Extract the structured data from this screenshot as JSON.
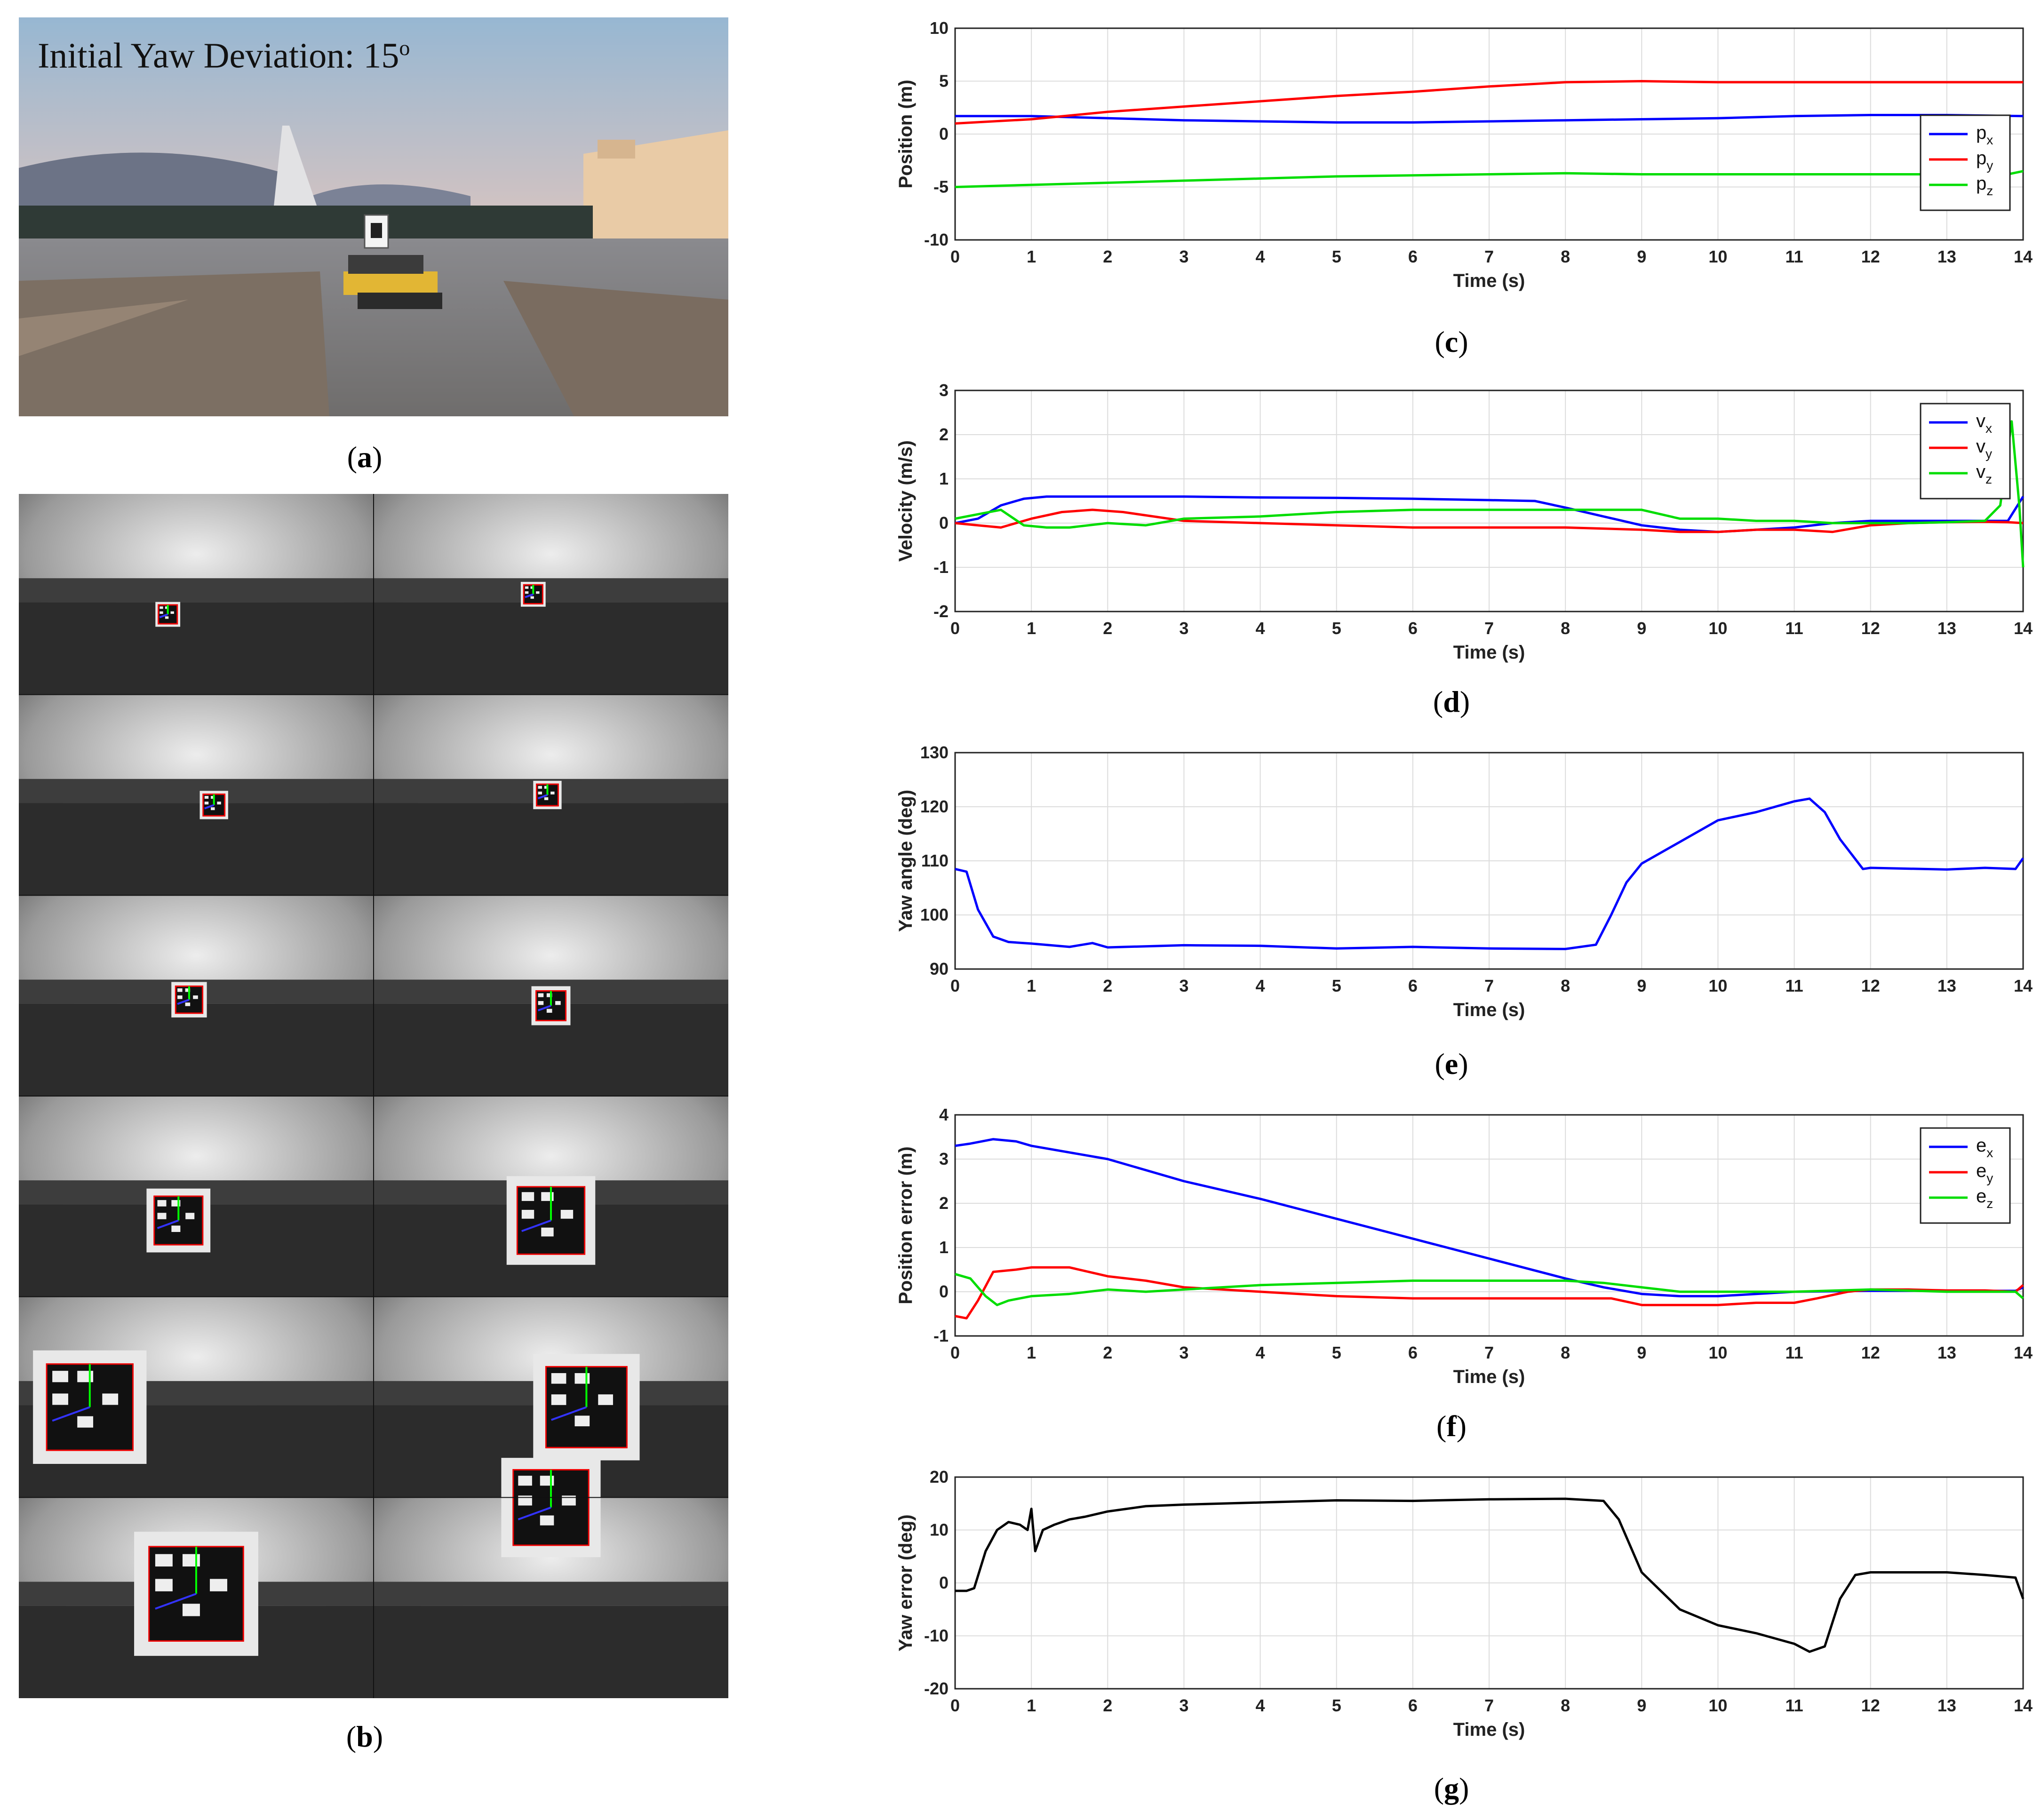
{
  "panel_a": {
    "overlay_text": "Initial Yaw Deviation: 15",
    "overlay_sup": "o",
    "caption_letter": "a"
  },
  "panel_b": {
    "caption_letter": "b"
  },
  "chart_data": [
    {
      "id": "c",
      "type": "line",
      "caption_letter": "c",
      "xlabel": "Time (s)",
      "ylabel": "Position (m)",
      "xlim": [
        0,
        14
      ],
      "ylim": [
        -10,
        10
      ],
      "xticks": [
        "0",
        "1",
        "2",
        "3",
        "4",
        "5",
        "6",
        "7",
        "8",
        "9",
        "10",
        "11",
        "12",
        "13",
        "14"
      ],
      "yticks": [
        "-10",
        "-5",
        "0",
        "5",
        "10"
      ],
      "grid": true,
      "legend": "right",
      "series": [
        {
          "name": "p",
          "sub": "x",
          "color": "#0000ff",
          "x": [
            0,
            1,
            2,
            3,
            4,
            5,
            6,
            7,
            8,
            9,
            10,
            11,
            12,
            13,
            14
          ],
          "y": [
            1.7,
            1.7,
            1.5,
            1.3,
            1.2,
            1.1,
            1.1,
            1.2,
            1.3,
            1.4,
            1.5,
            1.7,
            1.8,
            1.8,
            1.7
          ]
        },
        {
          "name": "p",
          "sub": "y",
          "color": "#ff0000",
          "x": [
            0,
            1,
            2,
            3,
            4,
            5,
            6,
            7,
            8,
            9,
            10,
            11,
            12,
            13,
            14
          ],
          "y": [
            1.0,
            1.4,
            2.1,
            2.6,
            3.1,
            3.6,
            4.0,
            4.5,
            4.9,
            5.0,
            4.9,
            4.9,
            4.9,
            4.9,
            4.9
          ]
        },
        {
          "name": "p",
          "sub": "z",
          "color": "#00dd00",
          "x": [
            0,
            1,
            2,
            3,
            4,
            5,
            6,
            7,
            8,
            9,
            10,
            11,
            12,
            13,
            13.8,
            14
          ],
          "y": [
            -5.0,
            -4.8,
            -4.6,
            -4.4,
            -4.2,
            -4.0,
            -3.9,
            -3.8,
            -3.7,
            -3.8,
            -3.8,
            -3.8,
            -3.8,
            -3.8,
            -3.8,
            -3.5
          ]
        }
      ]
    },
    {
      "id": "d",
      "type": "line",
      "caption_letter": "d",
      "xlabel": "Time (s)",
      "ylabel": "Velocity (m/s)",
      "xlim": [
        0,
        14
      ],
      "ylim": [
        -2,
        3
      ],
      "xticks": [
        "0",
        "1",
        "2",
        "3",
        "4",
        "5",
        "6",
        "7",
        "8",
        "9",
        "10",
        "11",
        "12",
        "13",
        "14"
      ],
      "yticks": [
        "-2",
        "-1",
        "0",
        "1",
        "2",
        "3"
      ],
      "grid": true,
      "legend": "top-right",
      "series": [
        {
          "name": "v",
          "sub": "x",
          "color": "#0000ff",
          "x": [
            0,
            0.3,
            0.6,
            0.9,
            1.2,
            2,
            3,
            4,
            5,
            6,
            7,
            7.6,
            8,
            8.5,
            9,
            9.5,
            10,
            10.5,
            11,
            11.5,
            12,
            12.5,
            13,
            13.5,
            13.8,
            14
          ],
          "y": [
            0,
            0.1,
            0.4,
            0.55,
            0.6,
            0.6,
            0.6,
            0.58,
            0.57,
            0.55,
            0.52,
            0.5,
            0.35,
            0.15,
            -0.05,
            -0.15,
            -0.2,
            -0.15,
            -0.1,
            0,
            0.05,
            0.05,
            0.05,
            0.05,
            0.05,
            0.6
          ]
        },
        {
          "name": "v",
          "sub": "y",
          "color": "#ff0000",
          "x": [
            0,
            0.3,
            0.6,
            1.0,
            1.4,
            1.8,
            2.2,
            2.6,
            3,
            4,
            5,
            6,
            7,
            8,
            9,
            9.5,
            10,
            10.5,
            11,
            11.5,
            12,
            12.5,
            13,
            13.5,
            13.8,
            14
          ],
          "y": [
            0,
            -0.05,
            -0.1,
            0.1,
            0.25,
            0.3,
            0.25,
            0.15,
            0.05,
            0,
            -0.05,
            -0.1,
            -0.1,
            -0.1,
            -0.15,
            -0.2,
            -0.2,
            -0.15,
            -0.15,
            -0.2,
            -0.05,
            0,
            0.02,
            0.03,
            0.02,
            0.0
          ]
        },
        {
          "name": "v",
          "sub": "z",
          "color": "#00dd00",
          "x": [
            0,
            0.3,
            0.6,
            0.9,
            1.2,
            1.5,
            2,
            2.5,
            3,
            4,
            5,
            6,
            7,
            8,
            9,
            9.5,
            10,
            10.5,
            11,
            11.5,
            12,
            12.5,
            13,
            13.5,
            13.7,
            13.85,
            13.95,
            14
          ],
          "y": [
            0.1,
            0.2,
            0.3,
            -0.05,
            -0.1,
            -0.1,
            0,
            -0.05,
            0.1,
            0.15,
            0.25,
            0.3,
            0.3,
            0.3,
            0.3,
            0.1,
            0.1,
            0.05,
            0.05,
            0.0,
            0.0,
            0.0,
            0.02,
            0.05,
            0.4,
            2.3,
            0.4,
            -1.0
          ]
        }
      ]
    },
    {
      "id": "e",
      "type": "line",
      "caption_letter": "e",
      "xlabel": "Time (s)",
      "ylabel": "Yaw angle (deg)",
      "xlim": [
        0,
        14
      ],
      "ylim": [
        90,
        130
      ],
      "xticks": [
        "0",
        "1",
        "2",
        "3",
        "4",
        "5",
        "6",
        "7",
        "8",
        "9",
        "10",
        "11",
        "12",
        "13",
        "14"
      ],
      "yticks": [
        "90",
        "100",
        "110",
        "120",
        "130"
      ],
      "grid": true,
      "series": [
        {
          "name": "",
          "color": "#0000ff",
          "x": [
            0,
            0.15,
            0.3,
            0.5,
            0.7,
            1,
            1.5,
            1.8,
            2,
            3,
            4,
            5,
            6,
            7,
            8,
            8.4,
            8.6,
            8.8,
            9,
            9.5,
            10,
            10.5,
            11,
            11.2,
            11.4,
            11.6,
            11.9,
            12,
            13,
            13.5,
            13.9,
            14
          ],
          "y": [
            108.5,
            108,
            101,
            96,
            95,
            94.7,
            94.1,
            94.8,
            94.0,
            94.4,
            94.3,
            93.8,
            94.1,
            93.8,
            93.7,
            94.5,
            100,
            106,
            109.5,
            113.5,
            117.5,
            119,
            121,
            121.5,
            119,
            114,
            108.5,
            108.7,
            108.4,
            108.7,
            108.5,
            110.5
          ]
        }
      ]
    },
    {
      "id": "f",
      "type": "line",
      "caption_letter": "f",
      "xlabel": "Time (s)",
      "ylabel": "Position error (m)",
      "xlim": [
        0,
        14
      ],
      "ylim": [
        -1,
        4
      ],
      "xticks": [
        "0",
        "1",
        "2",
        "3",
        "4",
        "5",
        "6",
        "7",
        "8",
        "9",
        "10",
        "11",
        "12",
        "13",
        "14"
      ],
      "yticks": [
        "-1",
        "0",
        "1",
        "2",
        "3",
        "4"
      ],
      "grid": true,
      "legend": "top-right",
      "series": [
        {
          "name": "e",
          "sub": "x",
          "color": "#0000ff",
          "x": [
            0,
            0.2,
            0.5,
            0.8,
            1,
            2,
            3,
            4,
            5,
            6,
            7,
            8,
            8.5,
            9,
            9.5,
            10,
            10.5,
            11,
            12,
            13,
            13.9,
            14
          ],
          "y": [
            3.3,
            3.35,
            3.45,
            3.4,
            3.3,
            3.0,
            2.5,
            2.1,
            1.65,
            1.2,
            0.75,
            0.3,
            0.1,
            -0.05,
            -0.1,
            -0.1,
            -0.05,
            0,
            0.02,
            0.02,
            0.02,
            0.1
          ]
        },
        {
          "name": "e",
          "sub": "y",
          "color": "#ff0000",
          "x": [
            0,
            0.15,
            0.3,
            0.5,
            0.8,
            1,
            1.5,
            2,
            2.5,
            3,
            3.5,
            4,
            5,
            6,
            7,
            8,
            8.6,
            9,
            9.5,
            10,
            10.5,
            11,
            11.3,
            11.7,
            12,
            12.5,
            13,
            13.5,
            13.9,
            14
          ],
          "y": [
            -0.55,
            -0.6,
            -0.2,
            0.45,
            0.5,
            0.55,
            0.55,
            0.35,
            0.25,
            0.1,
            0.05,
            0,
            -0.1,
            -0.15,
            -0.15,
            -0.15,
            -0.15,
            -0.3,
            -0.3,
            -0.3,
            -0.25,
            -0.25,
            -0.15,
            0.0,
            0.05,
            0.05,
            0.03,
            0.03,
            0.0,
            0.15
          ]
        },
        {
          "name": "e",
          "sub": "z",
          "color": "#00dd00",
          "x": [
            0,
            0.2,
            0.4,
            0.55,
            0.7,
            1,
            1.5,
            2,
            2.5,
            3,
            4,
            5,
            6,
            7,
            8,
            8.5,
            9,
            9.5,
            10,
            11,
            12,
            13,
            13.9,
            14
          ],
          "y": [
            0.4,
            0.3,
            -0.1,
            -0.3,
            -0.2,
            -0.1,
            -0.05,
            0.05,
            0,
            0.05,
            0.15,
            0.2,
            0.25,
            0.25,
            0.25,
            0.2,
            0.1,
            0.0,
            0.0,
            0.0,
            0.05,
            0.0,
            0.0,
            -0.15
          ]
        }
      ]
    },
    {
      "id": "g",
      "type": "line",
      "caption_letter": "g",
      "xlabel": "Time (s)",
      "ylabel": "Yaw error (deg)",
      "xlim": [
        0,
        14
      ],
      "ylim": [
        -20,
        20
      ],
      "xticks": [
        "0",
        "1",
        "2",
        "3",
        "4",
        "5",
        "6",
        "7",
        "8",
        "9",
        "10",
        "11",
        "12",
        "13",
        "14"
      ],
      "yticks": [
        "-20",
        "-10",
        "0",
        "10",
        "20"
      ],
      "grid": true,
      "series": [
        {
          "name": "",
          "color": "#000000",
          "x": [
            0,
            0.15,
            0.25,
            0.4,
            0.55,
            0.7,
            0.85,
            0.95,
            1.0,
            1.05,
            1.15,
            1.3,
            1.5,
            1.7,
            2,
            2.5,
            3,
            4,
            5,
            6,
            7,
            8,
            8.5,
            8.7,
            9,
            9.5,
            10,
            10.5,
            11,
            11.2,
            11.4,
            11.6,
            11.8,
            12,
            13,
            13.5,
            13.9,
            14
          ],
          "y": [
            -1.5,
            -1.5,
            -1,
            6,
            10,
            11.5,
            11,
            10,
            14,
            6,
            10,
            11,
            12,
            12.5,
            13.5,
            14.5,
            14.8,
            15.2,
            15.6,
            15.5,
            15.8,
            15.9,
            15.5,
            12,
            2,
            -5,
            -8,
            -9.5,
            -11.5,
            -13,
            -12,
            -3,
            1.5,
            2,
            2,
            1.5,
            1,
            -3
          ]
        }
      ]
    }
  ]
}
